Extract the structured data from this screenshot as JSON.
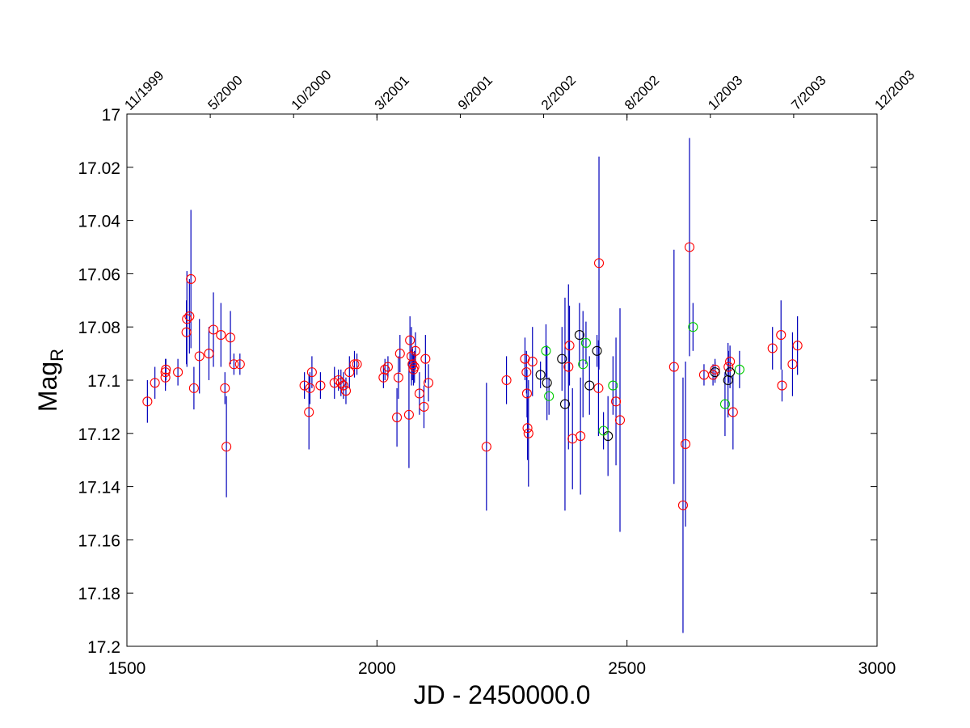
{
  "chart_data": {
    "type": "scatter",
    "title": "",
    "xlabel": "JD - 2450000.0",
    "ylabel": "Mag",
    "ylabel_sub": "R",
    "xlim": [
      1500,
      3000
    ],
    "ylim": [
      17.0,
      17.2
    ],
    "y_inverted": true,
    "grid": false,
    "x_ticks": [
      "1500",
      "2000",
      "2500",
      "3000"
    ],
    "y_ticks": [
      "17",
      "17.02",
      "17.04",
      "17.06",
      "17.08",
      "17.1",
      "17.12",
      "17.14",
      "17.16",
      "17.18",
      "17.2"
    ],
    "top_axis_dates": [
      "11/1999",
      "5/2000",
      "10/2000",
      "3/2001",
      "9/2001",
      "2/2002",
      "8/2002",
      "1/2003",
      "7/2003",
      "12/2003"
    ],
    "colors": {
      "red": "#ff0000",
      "black": "#000000",
      "green": "#00cc00",
      "errorbar": "#0000bb"
    },
    "series": [
      {
        "marker_color": "red",
        "points": [
          [
            1541,
            17.108,
            0.008
          ],
          [
            1556,
            17.101,
            0.006
          ],
          [
            1577,
            17.099,
            0.005
          ],
          [
            1577,
            17.097,
            0.005
          ],
          [
            1578,
            17.096,
            0.004
          ],
          [
            1602,
            17.097,
            0.005
          ],
          [
            1619,
            17.082,
            0.012
          ],
          [
            1620,
            17.077,
            0.018
          ],
          [
            1625,
            17.076,
            0.014
          ],
          [
            1628,
            17.062,
            0.026
          ],
          [
            1634,
            17.103,
            0.008
          ],
          [
            1645,
            17.091,
            0.014
          ],
          [
            1664,
            17.09,
            0.01
          ],
          [
            1673,
            17.081,
            0.014
          ],
          [
            1688,
            17.083,
            0.012
          ],
          [
            1696,
            17.103,
            0.006
          ],
          [
            1699,
            17.125,
            0.019
          ],
          [
            1707,
            17.084,
            0.01
          ],
          [
            1714,
            17.094,
            0.004
          ],
          [
            1726,
            17.094,
            0.004
          ],
          [
            1855,
            17.102,
            0.005
          ],
          [
            1864,
            17.112,
            0.014
          ],
          [
            1866,
            17.103,
            0.006
          ],
          [
            1870,
            17.097,
            0.006
          ],
          [
            1887,
            17.102,
            0.005
          ],
          [
            1915,
            17.101,
            0.006
          ],
          [
            1923,
            17.1,
            0.004
          ],
          [
            1928,
            17.101,
            0.005
          ],
          [
            1933,
            17.102,
            0.005
          ],
          [
            1938,
            17.104,
            0.005
          ],
          [
            1945,
            17.097,
            0.006
          ],
          [
            1955,
            17.094,
            0.005
          ],
          [
            1960,
            17.094,
            0.004
          ],
          [
            2013,
            17.099,
            0.004
          ],
          [
            2016,
            17.096,
            0.004
          ],
          [
            2022,
            17.095,
            0.004
          ],
          [
            2040,
            17.114,
            0.011
          ],
          [
            2043,
            17.099,
            0.008
          ],
          [
            2046,
            17.09,
            0.007
          ],
          [
            2064,
            17.113,
            0.02
          ],
          [
            2066,
            17.085,
            0.009
          ],
          [
            2069,
            17.091,
            0.011
          ],
          [
            2071,
            17.094,
            0.006
          ],
          [
            2073,
            17.096,
            0.006
          ],
          [
            2075,
            17.095,
            0.006
          ],
          [
            2077,
            17.089,
            0.007
          ],
          [
            2085,
            17.105,
            0.008
          ],
          [
            2094,
            17.11,
            0.008
          ],
          [
            2097,
            17.092,
            0.009
          ],
          [
            2103,
            17.101,
            0.007
          ],
          [
            2219,
            17.125,
            0.024
          ],
          [
            2259,
            17.1,
            0.009
          ],
          [
            2296,
            17.092,
            0.008
          ],
          [
            2299,
            17.097,
            0.008
          ],
          [
            2300,
            17.105,
            0.009
          ],
          [
            2301,
            17.118,
            0.012
          ],
          [
            2303,
            17.12,
            0.02
          ],
          [
            2311,
            17.093,
            0.013
          ],
          [
            2383,
            17.095,
            0.031
          ],
          [
            2385,
            17.087,
            0.015
          ],
          [
            2391,
            17.122,
            0.019
          ],
          [
            2407,
            17.121,
            0.022
          ],
          [
            2443,
            17.103,
            0.018
          ],
          [
            2444,
            17.056,
            0.04
          ],
          [
            2478,
            17.108,
            0.024
          ],
          [
            2486,
            17.115,
            0.042
          ],
          [
            2594,
            17.095,
            0.044
          ],
          [
            2612,
            17.147,
            0.048
          ],
          [
            2617,
            17.124,
            0.031
          ],
          [
            2625,
            17.05,
            0.041
          ],
          [
            2654,
            17.098,
            0.004
          ],
          [
            2672,
            17.098,
            0.004
          ],
          [
            2676,
            17.096,
            0.004
          ],
          [
            2703,
            17.095,
            0.006
          ],
          [
            2706,
            17.093,
            0.006
          ],
          [
            2712,
            17.112,
            0.014
          ],
          [
            2791,
            17.088,
            0.008
          ],
          [
            2808,
            17.083,
            0.013
          ],
          [
            2810,
            17.102,
            0.006
          ],
          [
            2831,
            17.094,
            0.012
          ],
          [
            2841,
            17.087,
            0.011
          ]
        ]
      },
      {
        "marker_color": "black",
        "points": [
          [
            2327,
            17.098,
            0.005
          ],
          [
            2340,
            17.101,
            0.014
          ],
          [
            2370,
            17.092,
            0.012
          ],
          [
            2376,
            17.109,
            0.04
          ],
          [
            2405,
            17.083,
            0.012
          ],
          [
            2425,
            17.102,
            0.011
          ],
          [
            2440,
            17.089,
            0.006
          ],
          [
            2462,
            17.121,
            0.015
          ],
          [
            2676,
            17.097,
            0.004
          ],
          [
            2702,
            17.1,
            0.014
          ],
          [
            2706,
            17.097,
            0.006
          ]
        ]
      },
      {
        "marker_color": "green",
        "points": [
          [
            2338,
            17.089,
            0.01
          ],
          [
            2344,
            17.106,
            0.007
          ],
          [
            2412,
            17.094,
            0.02
          ],
          [
            2418,
            17.086,
            0.008
          ],
          [
            2453,
            17.119,
            0.007
          ],
          [
            2472,
            17.102,
            0.011
          ],
          [
            2632,
            17.08,
            0.009
          ],
          [
            2696,
            17.109,
            0.012
          ],
          [
            2725,
            17.096,
            0.007
          ]
        ]
      }
    ]
  }
}
